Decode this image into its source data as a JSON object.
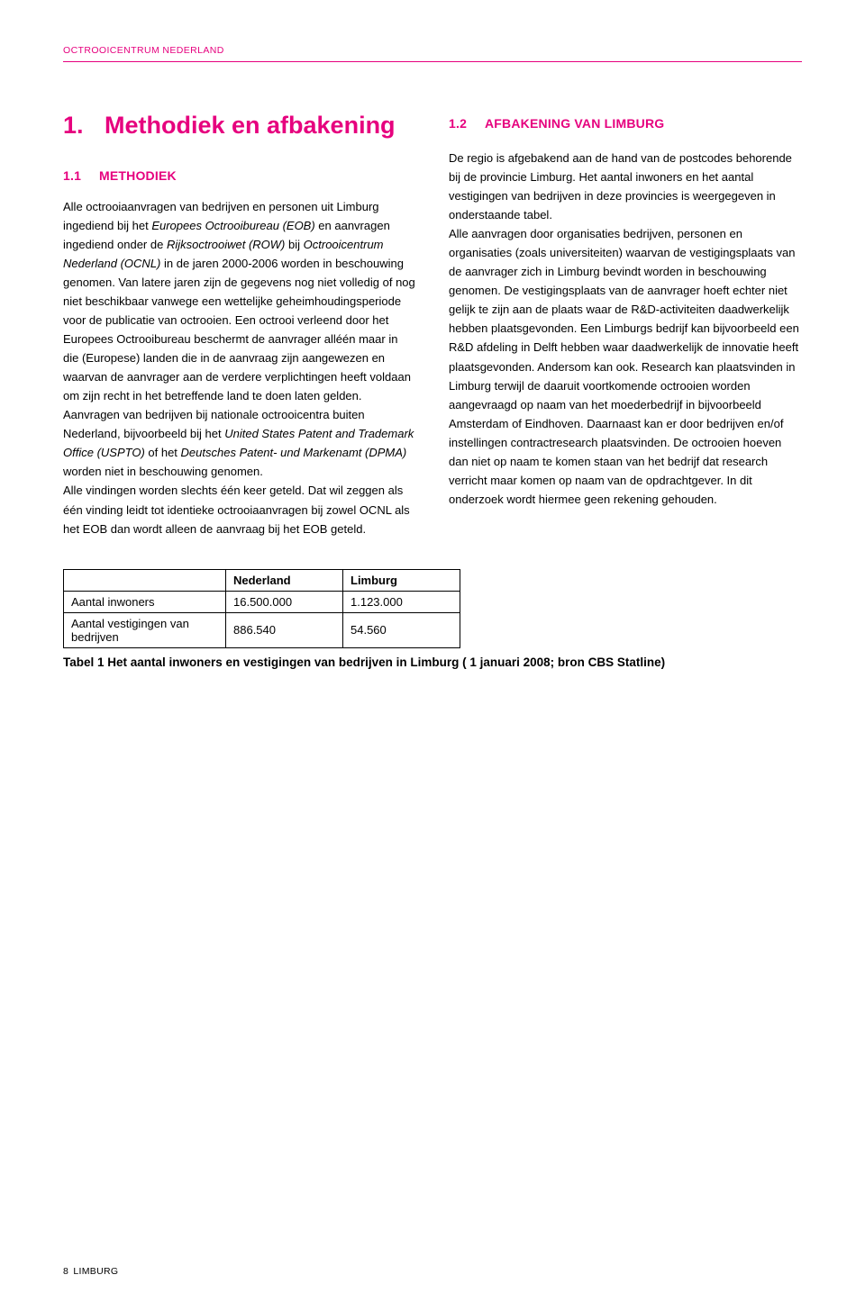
{
  "header": {
    "label": "OCTROOICENTRUM NEDERLAND"
  },
  "chapter": {
    "number": "1.",
    "title": "Methodiek en afbakening"
  },
  "left_section": {
    "number": "1.1",
    "title": "METHODIEK",
    "p1a": "Alle octrooiaanvragen van bedrijven en personen uit Limburg ingediend bij het ",
    "p1_i1": "Europees Octrooibureau (EOB)",
    "p1b": " en aanvragen ingediend onder de ",
    "p1_i2": "Rijksoctrooiwet (ROW)",
    "p1c": " bij ",
    "p1_i3": "Octrooicentrum Nederland (OCNL)",
    "p1d": " in de jaren 2000-2006 worden in beschouwing genomen. Van latere jaren zijn de gegevens nog niet volledig of nog niet beschikbaar vanwege een wettelijke geheimhoudingsperiode voor de publicatie van octrooien. Een octrooi verleend door het Europees Octrooibureau beschermt de aanvrager alléén maar in die (Europese) landen die in de aanvraag zijn aangewezen en waarvan de aanvrager aan de verdere verplichtingen heeft voldaan om zijn recht in het betreffende land te doen laten gelden. Aanvragen van bedrijven bij nationale octrooicentra buiten Nederland, bijvoorbeeld bij het ",
    "p1_i4": "United States Patent and Trademark Office (USPTO)",
    "p1e": " of het ",
    "p1_i5": "Deutsches Patent- und Markenamt (DPMA)",
    "p1f": " worden niet in beschouwing genomen.",
    "p2": "Alle vindingen worden slechts één keer geteld. Dat wil zeggen als één vinding leidt tot identieke octrooiaanvragen bij zowel OCNL als het EOB dan wordt alleen de aanvraag bij het EOB geteld."
  },
  "right_section": {
    "number": "1.2",
    "title": "AFBAKENING VAN LIMBURG",
    "p1": "De regio is afgebakend aan de hand van de postcodes behorende bij de provincie Limburg. Het aantal inwoners en het aantal vestigingen van bedrijven in deze provincies is weergegeven in onderstaande tabel.",
    "p2": "Alle aanvragen door organisaties bedrijven, personen en organisaties (zoals universiteiten) waarvan de vestigingsplaats van de aanvrager zich in Limburg bevindt worden in beschouwing genomen. De vestigingsplaats van de aanvrager hoeft echter niet gelijk te zijn aan de plaats waar de R&D-activiteiten daadwerkelijk hebben plaatsgevonden. Een Limburgs bedrijf kan bijvoorbeeld een R&D afdeling in Delft hebben waar daadwerkelijk de innovatie heeft plaatsgevonden. Andersom kan ook. Research kan plaatsvinden in Limburg terwijl de daaruit voortkomende octrooien worden aangevraagd op naam van het moederbedrijf in bijvoorbeeld Amsterdam of Eindhoven. Daarnaast kan er door bedrijven en/of instellingen contractresearch plaatsvinden. De octrooien hoeven dan niet op naam te komen staan van het bedrijf dat research verricht maar komen op naam van de opdrachtgever. In dit onderzoek wordt hiermee geen rekening gehouden."
  },
  "table": {
    "columns": [
      "",
      "Nederland",
      "Limburg"
    ],
    "rows": [
      [
        "Aantal inwoners",
        "16.500.000",
        "1.123.000"
      ],
      [
        "Aantal vestigingen van bedrijven",
        "886.540",
        "54.560"
      ]
    ],
    "caption": "Tabel 1 Het aantal inwoners en vestigingen van bedrijven in Limburg ( 1 januari 2008; bron CBS Statline)"
  },
  "footer": {
    "page": "8",
    "label": "LIMBURG"
  },
  "colors": {
    "accent": "#e6007e",
    "text": "#000000",
    "bg": "#ffffff"
  }
}
